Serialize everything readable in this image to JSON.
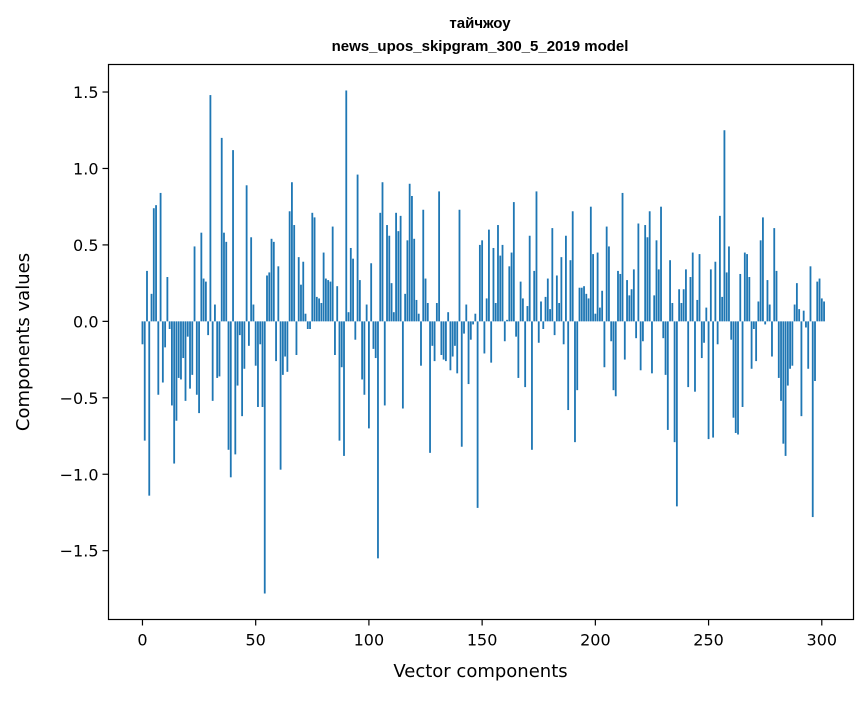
{
  "chart_data": {
    "type": "bar",
    "title": "тайчжоу",
    "subtitle": "news_upos_skipgram_300_5_2019 model",
    "xlabel": "Vector components",
    "ylabel": "Components values",
    "xlim": [
      -15,
      314
    ],
    "ylim": [
      -1.95,
      1.68
    ],
    "xticks": [
      0,
      50,
      100,
      150,
      200,
      250,
      300
    ],
    "xtick_labels": [
      "0",
      "50",
      "100",
      "150",
      "200",
      "250",
      "300"
    ],
    "yticks": [
      1.5,
      1.0,
      0.5,
      0.0,
      -0.5,
      -1.0,
      -1.5
    ],
    "ytick_labels": [
      "1.5",
      "1.0",
      "0.5",
      "0.0",
      "−0.5",
      "−1.0",
      "−1.5"
    ],
    "bar_color": "#1f77b4",
    "grid": false,
    "legend": "none",
    "series": [
      {
        "x_start": 0,
        "values": [
          -0.15,
          -0.78,
          0.33,
          -1.14,
          0.18,
          0.74,
          0.76,
          -0.48,
          0.84,
          -0.4,
          -0.17,
          0.29,
          -0.05,
          -0.55,
          -0.93,
          -0.65,
          -0.37,
          -0.38,
          -0.24,
          -0.52,
          -0.1,
          -0.44,
          -0.35,
          0.49,
          -0.48,
          -0.6,
          0.58,
          0.28,
          0.26,
          -0.09,
          1.48,
          -0.52,
          0.11,
          -0.37,
          -0.36,
          1.2,
          0.58,
          0.52,
          -0.84,
          -1.02,
          1.12,
          -0.87,
          -0.42,
          -0.09,
          -0.62,
          -0.31,
          0.89,
          -0.16,
          0.55,
          0.11,
          -0.29,
          -0.56,
          -0.15,
          -0.56,
          -1.78,
          0.3,
          0.32,
          0.54,
          0.52,
          -0.26,
          0.36,
          -0.97,
          -0.35,
          -0.23,
          -0.33,
          0.72,
          0.91,
          0.63,
          -0.22,
          0.42,
          0.24,
          0.39,
          0.05,
          -0.05,
          -0.05,
          0.71,
          0.68,
          0.16,
          0.15,
          0.12,
          0.45,
          0.28,
          0.27,
          0.26,
          0.62,
          -0.22,
          0.23,
          -0.78,
          -0.3,
          -0.88,
          1.51,
          0.06,
          0.48,
          0.41,
          -0.12,
          0.96,
          0.27,
          -0.38,
          -0.48,
          0.11,
          -0.7,
          0.38,
          -0.18,
          -0.24,
          -1.55,
          0.71,
          0.91,
          -0.55,
          0.63,
          0.56,
          0.25,
          0.06,
          0.71,
          0.59,
          0.69,
          -0.57,
          0.18,
          0.53,
          0.9,
          0.82,
          0.54,
          0.14,
          0.05,
          -0.29,
          0.73,
          0.28,
          0.12,
          -0.86,
          -0.16,
          -0.26,
          0.12,
          0.85,
          -0.22,
          -0.25,
          -0.26,
          0.06,
          -0.32,
          -0.23,
          -0.16,
          -0.34,
          0.73,
          -0.82,
          -0.08,
          0.11,
          -0.41,
          -0.12,
          -0.02,
          0.05,
          -1.22,
          0.5,
          0.53,
          -0.21,
          0.15,
          0.6,
          -0.27,
          0.48,
          0.12,
          0.63,
          0.43,
          0.5,
          -0.13,
          0.01,
          0.36,
          0.45,
          0.78,
          -0.1,
          -0.37,
          0.26,
          0.15,
          -0.43,
          0.1,
          0.56,
          -0.84,
          0.33,
          0.85,
          -0.14,
          0.13,
          -0.05,
          0.16,
          0.28,
          0.08,
          0.61,
          -0.09,
          0.3,
          0.12,
          0.42,
          -0.15,
          0.56,
          -0.58,
          0.4,
          0.72,
          -0.79,
          -0.45,
          0.22,
          0.22,
          0.23,
          0.18,
          0.15,
          0.75,
          0.44,
          0.05,
          0.45,
          0.09,
          0.2,
          -0.3,
          0.62,
          0.49,
          -0.13,
          -0.45,
          -0.49,
          0.33,
          0.31,
          0.84,
          -0.25,
          0.27,
          0.17,
          0.21,
          0.34,
          -0.11,
          0.64,
          -0.32,
          -0.13,
          0.63,
          0.55,
          0.72,
          -0.34,
          0.17,
          0.53,
          0.34,
          0.75,
          -0.11,
          -0.35,
          -0.71,
          0.4,
          0.12,
          -0.79,
          -1.21,
          0.21,
          0.12,
          0.21,
          0.34,
          -0.43,
          0.29,
          0.45,
          -0.46,
          0.14,
          0.44,
          -0.24,
          -0.14,
          0.09,
          -0.77,
          0.34,
          -0.76,
          0.39,
          -0.15,
          0.69,
          0.16,
          1.25,
          0.32,
          0.49,
          -0.12,
          -0.63,
          -0.73,
          -0.74,
          0.31,
          -0.56,
          0.45,
          0.44,
          0.29,
          -0.31,
          -0.05,
          -0.26,
          0.13,
          0.53,
          0.68,
          -0.02,
          0.27,
          0.11,
          -0.23,
          0.61,
          0.33,
          -0.37,
          -0.52,
          -0.8,
          -0.88,
          -0.42,
          -0.31,
          -0.29,
          0.11,
          0.25,
          0.08,
          -0.62,
          0.07,
          -0.04,
          -0.31,
          0.36,
          -1.28,
          -0.39,
          0.26,
          0.28,
          0.15,
          0.13
        ]
      }
    ]
  }
}
